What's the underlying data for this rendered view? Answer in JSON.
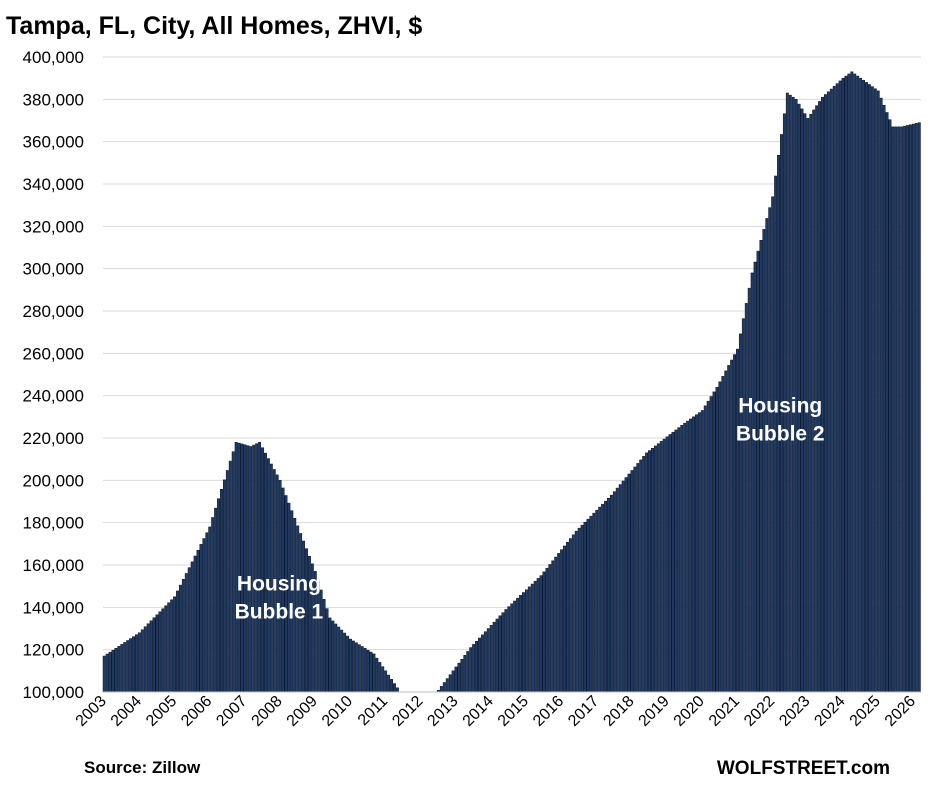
{
  "chart_data": {
    "type": "bar",
    "title": "Tampa, FL, City, All Homes, ZHVI, $",
    "xlabel": "",
    "ylabel": "",
    "ylim": [
      100000,
      400000
    ],
    "yticks": [
      "100,000",
      "120,000",
      "140,000",
      "160,000",
      "180,000",
      "200,000",
      "220,000",
      "240,000",
      "260,000",
      "280,000",
      "300,000",
      "320,000",
      "340,000",
      "360,000",
      "380,000",
      "400,000"
    ],
    "xticks": [
      "2003",
      "2004",
      "2005",
      "2006",
      "2007",
      "2008",
      "2009",
      "2010",
      "2011",
      "2012",
      "2013",
      "2014",
      "2015",
      "2016",
      "2017",
      "2018",
      "2019",
      "2020",
      "2021",
      "2022",
      "2023",
      "2024",
      "2025",
      "2026"
    ],
    "x_start": "2003-01",
    "x_end": "2026-03",
    "frequency": "monthly",
    "grid": true,
    "bar_color": "#1f3a64",
    "anchors": [
      [
        "2003-01",
        117000
      ],
      [
        "2004-01",
        128000
      ],
      [
        "2005-01",
        145000
      ],
      [
        "2006-01",
        178000
      ],
      [
        "2006-10",
        218000
      ],
      [
        "2007-03",
        216000
      ],
      [
        "2007-06",
        218000
      ],
      [
        "2008-01",
        200000
      ],
      [
        "2009-01",
        157000
      ],
      [
        "2009-06",
        135000
      ],
      [
        "2010-01",
        125000
      ],
      [
        "2010-09",
        118000
      ],
      [
        "2011-06",
        100000
      ],
      [
        "2012-06",
        99000
      ],
      [
        "2013-06",
        121000
      ],
      [
        "2014-06",
        139000
      ],
      [
        "2015-06",
        155000
      ],
      [
        "2016-06",
        176000
      ],
      [
        "2017-06",
        193000
      ],
      [
        "2018-06",
        213000
      ],
      [
        "2019-06",
        226000
      ],
      [
        "2020-01",
        233000
      ],
      [
        "2020-06",
        244000
      ],
      [
        "2021-01",
        262000
      ],
      [
        "2021-06",
        298000
      ],
      [
        "2022-01",
        334000
      ],
      [
        "2022-06",
        383000
      ],
      [
        "2022-09",
        380000
      ],
      [
        "2023-01",
        371000
      ],
      [
        "2023-06",
        381000
      ],
      [
        "2024-01",
        390000
      ],
      [
        "2024-04",
        393000
      ],
      [
        "2025-01",
        384000
      ],
      [
        "2025-06",
        367000
      ],
      [
        "2025-09",
        367000
      ],
      [
        "2026-03",
        369000
      ]
    ],
    "annotations": [
      {
        "text_lines": [
          "Housing",
          "Bubble 1"
        ],
        "x": "2008-01",
        "y": 148000
      },
      {
        "text_lines": [
          "Housing",
          "Bubble 2"
        ],
        "x": "2022-04",
        "y": 232000
      }
    ]
  },
  "footer": {
    "source": "Source: Zillow",
    "brand": "WOLFSTREET.com"
  }
}
